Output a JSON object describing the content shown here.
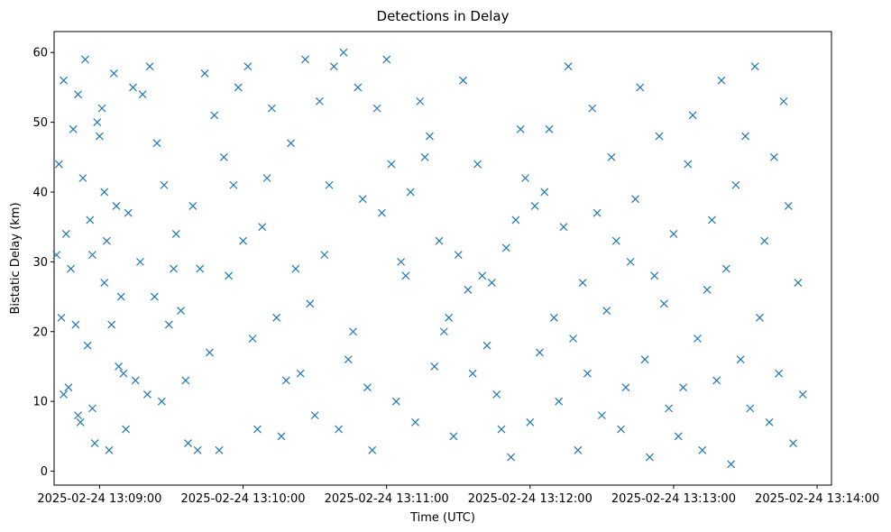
{
  "chart_data": {
    "type": "scatter",
    "title": "Detections in Delay",
    "xlabel": "Time (UTC)",
    "ylabel": "Bistatic Delay (km)",
    "x_ticks": [
      "2025-02-24 13:09:00",
      "2025-02-24 13:10:00",
      "2025-02-24 13:11:00",
      "2025-02-24 13:12:00",
      "2025-02-24 13:13:00",
      "2025-02-24 13:14:00"
    ],
    "y_ticks": [
      0,
      10,
      20,
      30,
      40,
      50,
      60
    ],
    "xlim": [
      "2025-02-24 13:08:41",
      "2025-02-24 13:14:06"
    ],
    "ylim": [
      -2,
      63
    ],
    "marker": "x",
    "color": "#1f77b4",
    "grid": false,
    "series": [
      {
        "x": [
          "13:08:42",
          "13:08:43",
          "13:08:44",
          "13:08:45",
          "13:08:45",
          "13:08:46",
          "13:08:47",
          "13:08:48",
          "13:08:49",
          "13:08:50",
          "13:08:51",
          "13:08:51",
          "13:08:52",
          "13:08:53",
          "13:08:54",
          "13:08:55",
          "13:08:56",
          "13:08:57",
          "13:08:57",
          "13:08:58",
          "13:08:59",
          "13:09:00",
          "13:09:01",
          "13:09:02",
          "13:09:02",
          "13:09:03",
          "13:09:04",
          "13:09:05",
          "13:09:06",
          "13:09:07",
          "13:09:08",
          "13:09:09",
          "13:09:10",
          "13:09:11",
          "13:09:12",
          "13:09:14",
          "13:09:15",
          "13:09:17",
          "13:09:18",
          "13:09:20",
          "13:09:21",
          "13:09:23",
          "13:09:24",
          "13:09:26",
          "13:09:27",
          "13:09:29",
          "13:09:31",
          "13:09:32",
          "13:09:34",
          "13:09:36",
          "13:09:37",
          "13:09:39",
          "13:09:41",
          "13:09:42",
          "13:09:44",
          "13:09:46",
          "13:09:48",
          "13:09:50",
          "13:09:52",
          "13:09:54",
          "13:09:56",
          "13:09:58",
          "13:10:00",
          "13:10:02",
          "13:10:04",
          "13:10:06",
          "13:10:08",
          "13:10:10",
          "13:10:12",
          "13:10:14",
          "13:10:16",
          "13:10:18",
          "13:10:20",
          "13:10:22",
          "13:10:24",
          "13:10:26",
          "13:10:28",
          "13:10:30",
          "13:10:32",
          "13:10:34",
          "13:10:36",
          "13:10:38",
          "13:10:40",
          "13:10:42",
          "13:10:44",
          "13:10:46",
          "13:10:48",
          "13:10:50",
          "13:10:52",
          "13:10:54",
          "13:10:56",
          "13:10:58",
          "13:11:00",
          "13:11:02",
          "13:11:04",
          "13:11:06",
          "13:11:08",
          "13:11:10",
          "13:11:12",
          "13:11:14",
          "13:11:16",
          "13:11:18",
          "13:11:20",
          "13:11:22",
          "13:11:24",
          "13:11:26",
          "13:11:28",
          "13:11:30",
          "13:11:32",
          "13:11:34",
          "13:11:36",
          "13:11:38",
          "13:11:40",
          "13:11:42",
          "13:11:44",
          "13:11:46",
          "13:11:48",
          "13:11:50",
          "13:11:52",
          "13:11:54",
          "13:11:56",
          "13:11:58",
          "13:12:00",
          "13:12:02",
          "13:12:04",
          "13:12:06",
          "13:12:08",
          "13:12:10",
          "13:12:12",
          "13:12:14",
          "13:12:16",
          "13:12:18",
          "13:12:20",
          "13:12:22",
          "13:12:24",
          "13:12:26",
          "13:12:28",
          "13:12:30",
          "13:12:32",
          "13:12:34",
          "13:12:36",
          "13:12:38",
          "13:12:40",
          "13:12:42",
          "13:12:44",
          "13:12:46",
          "13:12:48",
          "13:12:50",
          "13:12:52",
          "13:12:54",
          "13:12:56",
          "13:12:58",
          "13:13:00",
          "13:13:02",
          "13:13:04",
          "13:13:06",
          "13:13:08",
          "13:13:10",
          "13:13:12",
          "13:13:14",
          "13:13:16",
          "13:13:18",
          "13:13:20",
          "13:13:22",
          "13:13:24",
          "13:13:26",
          "13:13:28",
          "13:13:30",
          "13:13:32",
          "13:13:34",
          "13:13:36",
          "13:13:38",
          "13:13:40",
          "13:13:42",
          "13:13:44",
          "13:13:46",
          "13:13:48",
          "13:13:50",
          "13:13:52",
          "13:13:54"
        ],
        "y": [
          31,
          44,
          22,
          11,
          56,
          34,
          12,
          29,
          49,
          21,
          54,
          8,
          7,
          42,
          59,
          18,
          36,
          31,
          9,
          4,
          50,
          48,
          52,
          27,
          40,
          33,
          3,
          21,
          57,
          38,
          15,
          25,
          14,
          6,
          37,
          55,
          13,
          30,
          54,
          11,
          58,
          25,
          47,
          10,
          41,
          21,
          29,
          34,
          23,
          13,
          4,
          38,
          3,
          29,
          57,
          17,
          51,
          3,
          45,
          28,
          41,
          55,
          33,
          58,
          19,
          6,
          35,
          42,
          52,
          22,
          5,
          13,
          47,
          29,
          14,
          59,
          24,
          8,
          53,
          31,
          41,
          58,
          6,
          60,
          16,
          20,
          55,
          39,
          12,
          3,
          52,
          37,
          59,
          44,
          10,
          30,
          28,
          40,
          7,
          53,
          45,
          48,
          15,
          33,
          20,
          22,
          5,
          31,
          56,
          26,
          14,
          44,
          28,
          18,
          27,
          11,
          6,
          32,
          2,
          36,
          49,
          42,
          7,
          38,
          17,
          40,
          49,
          22,
          10,
          35,
          58,
          19,
          3,
          27,
          14,
          52,
          37,
          8,
          23,
          45,
          33,
          6,
          12,
          30,
          39,
          55,
          16,
          2,
          28,
          48,
          24,
          9,
          34,
          5,
          12,
          44,
          51,
          19,
          3,
          26,
          36,
          13,
          56,
          29,
          1,
          41,
          16,
          48,
          9,
          58,
          22,
          33,
          7,
          45,
          14,
          53,
          38,
          4,
          27,
          11
        ]
      }
    ]
  }
}
